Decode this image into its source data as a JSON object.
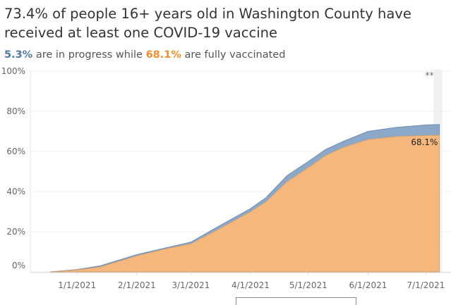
{
  "header": {
    "title": "73.4% of people 16+ years old in Washington County have received at least one COVID-19 vaccine",
    "sub_in_progress": "5.3%",
    "sub_mid": " are in progress while ",
    "sub_full": "68.1%",
    "sub_end": " are fully vaccinated"
  },
  "chart_data": {
    "type": "area",
    "title": "73.4% of people 16+ years old in Washington County have received at least one COVID-19 vaccine",
    "xlabel": "",
    "ylabel": "",
    "ylim": [
      0,
      100
    ],
    "y_ticks": [
      "0%",
      "20%",
      "40%",
      "60%",
      "80%",
      "100%"
    ],
    "x_ticks": [
      "1/1/2021",
      "2/1/2021",
      "3/1/2021",
      "4/1/2021",
      "5/1/2021",
      "6/1/2021",
      "7/1/2021"
    ],
    "x_tick_days": [
      17,
      48,
      76,
      107,
      137,
      168,
      198
    ],
    "days_note": "days since 12/15/2020",
    "x": [
      3,
      17,
      29,
      48,
      63,
      76,
      90,
      107,
      115,
      126,
      137,
      146,
      155,
      168,
      183,
      198,
      205
    ],
    "series": [
      {
        "name": "Fully vaccinated",
        "color": "#f5b77b",
        "values": [
          0,
          1,
          2.5,
          8,
          11.5,
          14,
          21,
          30,
          35,
          45,
          52,
          58,
          62,
          66,
          67.5,
          68,
          68.1
        ]
      },
      {
        "name": "At least one dose",
        "color": "#8ca8c8",
        "values": [
          0,
          1.2,
          3,
          8.6,
          12,
          14.8,
          22.5,
          31.5,
          37,
          48,
          55,
          61,
          65,
          70,
          72,
          73.2,
          73.4
        ]
      }
    ],
    "end_label": "68.1%",
    "annotation": "**",
    "grid": true
  }
}
